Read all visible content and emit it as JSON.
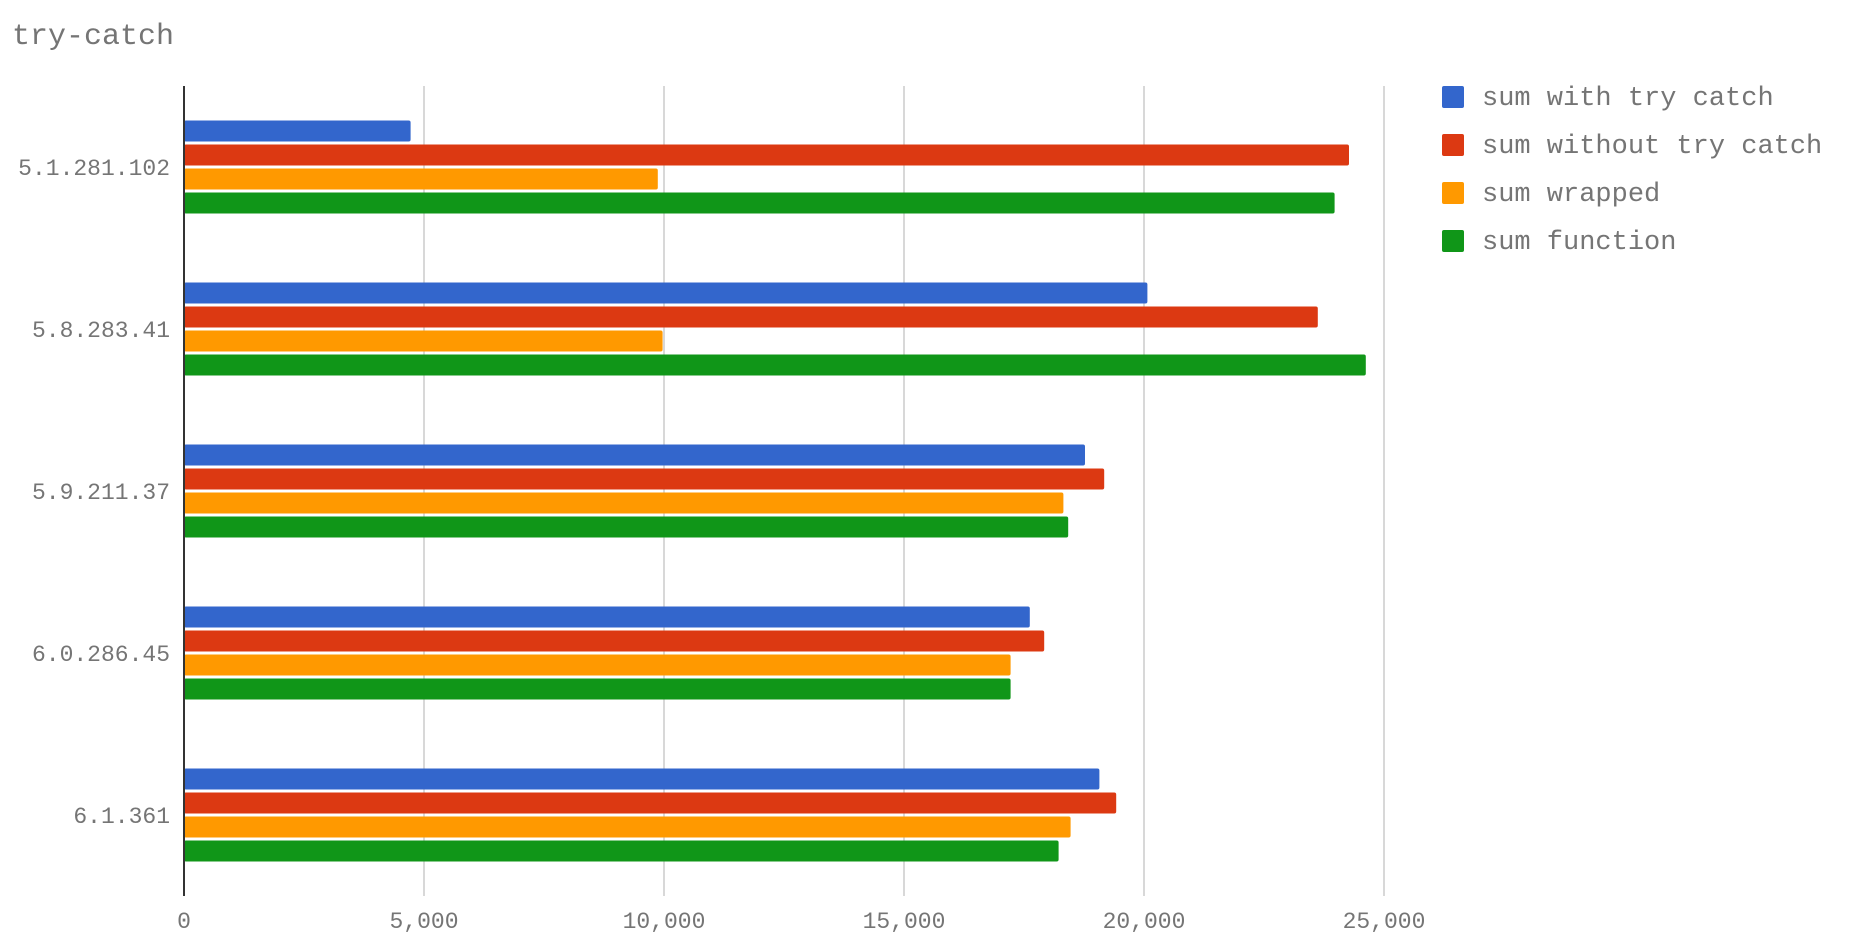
{
  "chart_data": {
    "type": "bar",
    "orientation": "horizontal",
    "title": "try-catch",
    "xlabel": "",
    "ylabel": "",
    "categories": [
      "5.1.281.102",
      "5.8.283.41",
      "5.9.211.37",
      "6.0.286.45",
      "6.1.361"
    ],
    "series": [
      {
        "name": "sum with try catch",
        "color": "#3366cc",
        "values": [
          4700,
          20050,
          18750,
          17600,
          19050
        ]
      },
      {
        "name": "sum without try catch",
        "color": "#dc3912",
        "values": [
          24250,
          23600,
          19150,
          17900,
          19400
        ]
      },
      {
        "name": "sum wrapped",
        "color": "#ff9900",
        "values": [
          9850,
          9950,
          18300,
          17200,
          18450
        ]
      },
      {
        "name": "sum function",
        "color": "#109618",
        "values": [
          23950,
          24600,
          18400,
          17200,
          18200
        ]
      }
    ],
    "xlim": [
      0,
      25000
    ],
    "x_ticks": [
      0,
      5000,
      10000,
      15000,
      20000,
      25000
    ],
    "x_tick_labels": [
      "0",
      "5,000",
      "10,000",
      "15,000",
      "20,000",
      "25,000"
    ],
    "grid": true,
    "legend_position": "right"
  }
}
